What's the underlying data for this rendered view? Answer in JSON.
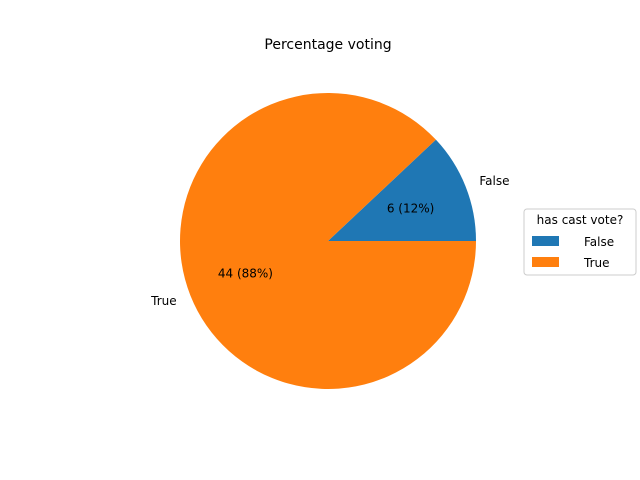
{
  "chart_data": {
    "type": "pie",
    "title": "Percentage voting",
    "categories": [
      "False",
      "True"
    ],
    "values": [
      6,
      44
    ],
    "percent_labels": [
      "6 (12%)",
      "44 (88%)"
    ],
    "colors": [
      "#1f77b4",
      "#ff7f0e"
    ],
    "legend": {
      "title": "has cast vote?",
      "entries": [
        "False",
        "True"
      ],
      "placement": "right"
    }
  }
}
